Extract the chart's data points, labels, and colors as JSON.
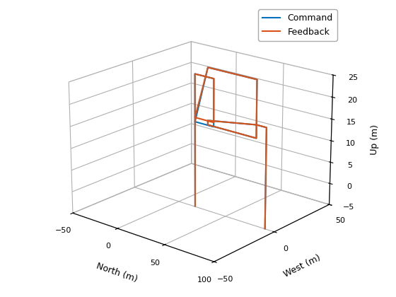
{
  "xlabel": "North (m)",
  "ylabel": "West (m)",
  "zlabel": "Up (m)",
  "xlim": [
    -50,
    100
  ],
  "ylim": [
    -50,
    50
  ],
  "zlim": [
    -5,
    25
  ],
  "xticks": [
    -50,
    0,
    50,
    100
  ],
  "yticks": [
    50,
    0,
    -50
  ],
  "zticks": [
    -5,
    0,
    5,
    10,
    15,
    20,
    25
  ],
  "command_color": "#0072BD",
  "feedback_color": "#D95319",
  "cmd_north": [
    5,
    5,
    5,
    25,
    25,
    5,
    5,
    85,
    85
  ],
  "cmd_west": [
    10,
    10,
    10,
    10,
    10,
    10,
    10,
    10,
    10
  ],
  "cmd_up": [
    -7,
    19,
    24,
    24,
    13,
    13,
    13,
    17,
    -6
  ],
  "fb_north": [
    5,
    5,
    5,
    25,
    25,
    5,
    5,
    85,
    85
  ],
  "fb_west": [
    10,
    10,
    10,
    10,
    10,
    10,
    10,
    10,
    10
  ],
  "fb_up": [
    -7,
    19,
    24,
    24,
    14,
    14,
    14,
    17,
    -6
  ],
  "elev": 20,
  "azim": -50,
  "legend_labels": [
    "Command",
    "Feedback"
  ],
  "lw": 1.5
}
